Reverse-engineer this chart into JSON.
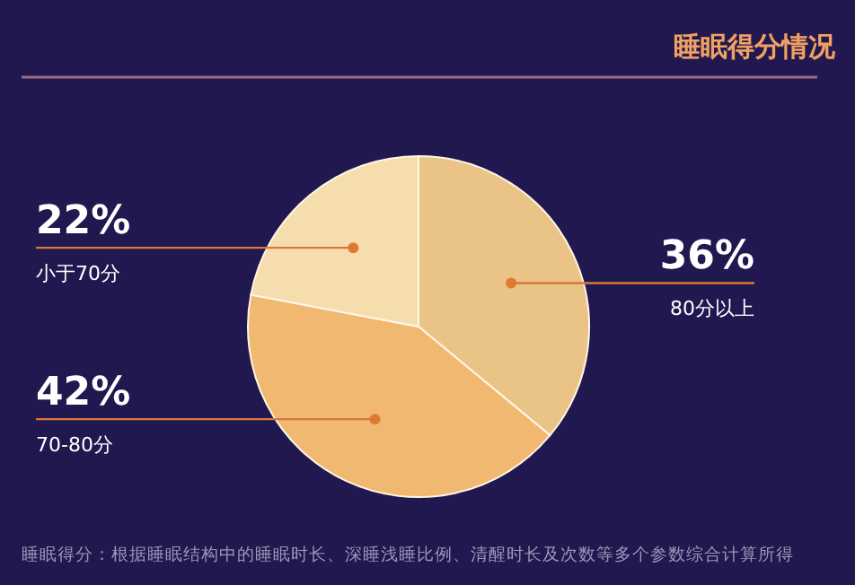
{
  "chart_data": {
    "type": "pie",
    "title": "睡眠得分情况",
    "categories": [
      "80分以上",
      "70-80分",
      "小于70分"
    ],
    "values": [
      36,
      42,
      22
    ],
    "colors": [
      "#eac486",
      "#f0b870",
      "#f6ddae"
    ],
    "value_labels": [
      "36%",
      "42%",
      "22%"
    ],
    "annotations": [
      "睡眠得分：根据睡眠结构中的睡眠时长、深睡浅睡比例、清醒时长及次数等多个参数综合计算所得"
    ]
  }
}
